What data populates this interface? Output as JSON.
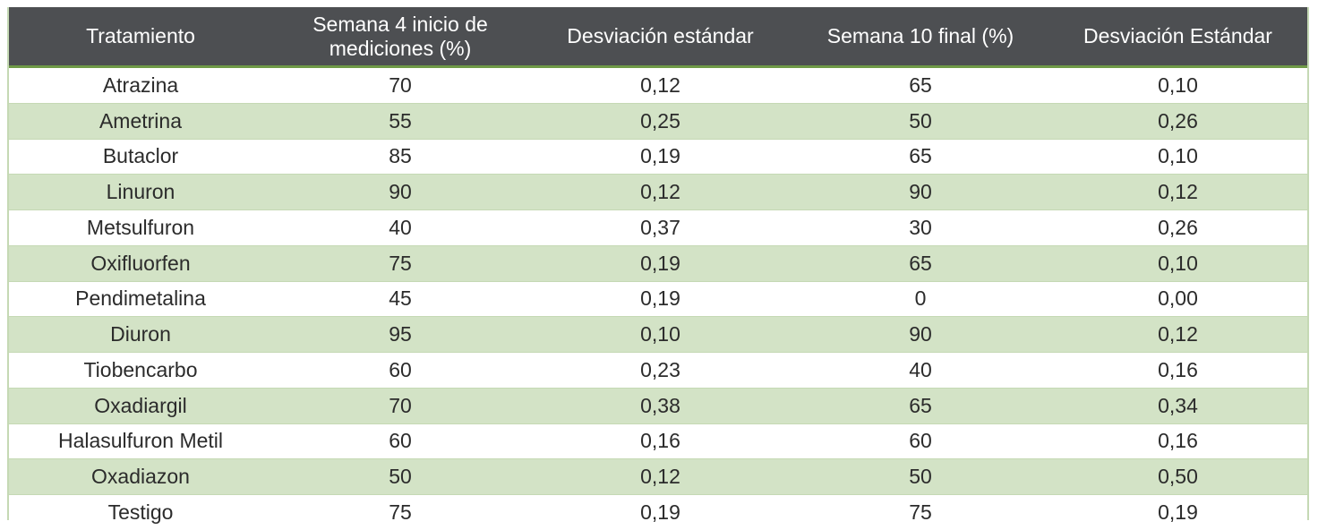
{
  "table": {
    "headers": [
      "Tratamiento",
      "Semana 4 inicio de mediciones (%)",
      "Desviación estándar",
      "Semana 10 final (%)",
      "Desviación Estándar"
    ],
    "rows": [
      [
        "Atrazina",
        "70",
        "0,12",
        "65",
        "0,10"
      ],
      [
        "Ametrina",
        "55",
        "0,25",
        "50",
        "0,26"
      ],
      [
        "Butaclor",
        "85",
        "0,19",
        "65",
        "0,10"
      ],
      [
        "Linuron",
        "90",
        "0,12",
        "90",
        "0,12"
      ],
      [
        "Metsulfuron",
        "40",
        "0,37",
        "30",
        "0,26"
      ],
      [
        "Oxifluorfen",
        "75",
        "0,19",
        "65",
        "0,10"
      ],
      [
        "Pendimetalina",
        "45",
        "0,19",
        "0",
        "0,00"
      ],
      [
        "Diuron",
        "95",
        "0,10",
        "90",
        "0,12"
      ],
      [
        "Tiobencarbo",
        "60",
        "0,23",
        "40",
        "0,16"
      ],
      [
        "Oxadiargil",
        "70",
        "0,38",
        "65",
        "0,34"
      ],
      [
        "Halasulfuron Metil",
        "60",
        "0,16",
        "60",
        "0,16"
      ],
      [
        "Oxadiazon",
        "50",
        "0,12",
        "50",
        "0,50"
      ],
      [
        "Testigo",
        "75",
        "0,19",
        "75",
        "0,19"
      ]
    ]
  },
  "colors": {
    "header_bg": "#4d4f52",
    "header_rule": "#6f9a47",
    "stripe_bg": "#d3e3c6",
    "border": "#c5d9b4"
  }
}
